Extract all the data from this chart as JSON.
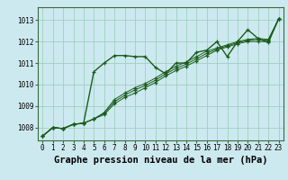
{
  "title": "Graphe pression niveau de la mer (hPa)",
  "background_color": "#cde9f0",
  "grid_color": "#9fcfbf",
  "line_color": "#1a5c1a",
  "xlim": [
    -0.5,
    23.5
  ],
  "ylim": [
    1007.4,
    1013.6
  ],
  "xticks": [
    0,
    1,
    2,
    3,
    4,
    5,
    6,
    7,
    8,
    9,
    10,
    11,
    12,
    13,
    14,
    15,
    16,
    17,
    18,
    19,
    20,
    21,
    22,
    23
  ],
  "yticks": [
    1008,
    1009,
    1010,
    1011,
    1012,
    1013
  ],
  "series": [
    [
      1007.6,
      1008.0,
      1007.95,
      1008.15,
      1008.2,
      1010.6,
      1011.0,
      1011.35,
      1011.35,
      1011.3,
      1011.3,
      1010.8,
      1010.5,
      1011.0,
      1011.0,
      1011.5,
      1011.6,
      1012.0,
      1011.3,
      1012.0,
      1012.55,
      1012.15,
      1011.95,
      1013.05
    ],
    [
      1007.6,
      1008.0,
      1007.95,
      1008.15,
      1008.2,
      1008.4,
      1008.6,
      1009.1,
      1009.4,
      1009.6,
      1009.85,
      1010.1,
      1010.4,
      1010.65,
      1010.85,
      1011.1,
      1011.35,
      1011.6,
      1011.75,
      1011.9,
      1012.0,
      1012.0,
      1012.0,
      1013.05
    ],
    [
      1007.6,
      1008.0,
      1007.95,
      1008.15,
      1008.2,
      1008.4,
      1008.65,
      1009.2,
      1009.5,
      1009.75,
      1009.95,
      1010.2,
      1010.5,
      1010.75,
      1010.95,
      1011.2,
      1011.45,
      1011.65,
      1011.8,
      1011.95,
      1012.05,
      1012.1,
      1012.05,
      1013.05
    ],
    [
      1007.6,
      1008.0,
      1007.95,
      1008.15,
      1008.2,
      1008.4,
      1008.7,
      1009.3,
      1009.6,
      1009.85,
      1010.05,
      1010.3,
      1010.6,
      1010.85,
      1011.05,
      1011.3,
      1011.55,
      1011.7,
      1011.85,
      1012.0,
      1012.1,
      1012.15,
      1012.1,
      1013.05
    ]
  ],
  "tick_fontsize": 5.5,
  "title_fontsize": 7.5
}
